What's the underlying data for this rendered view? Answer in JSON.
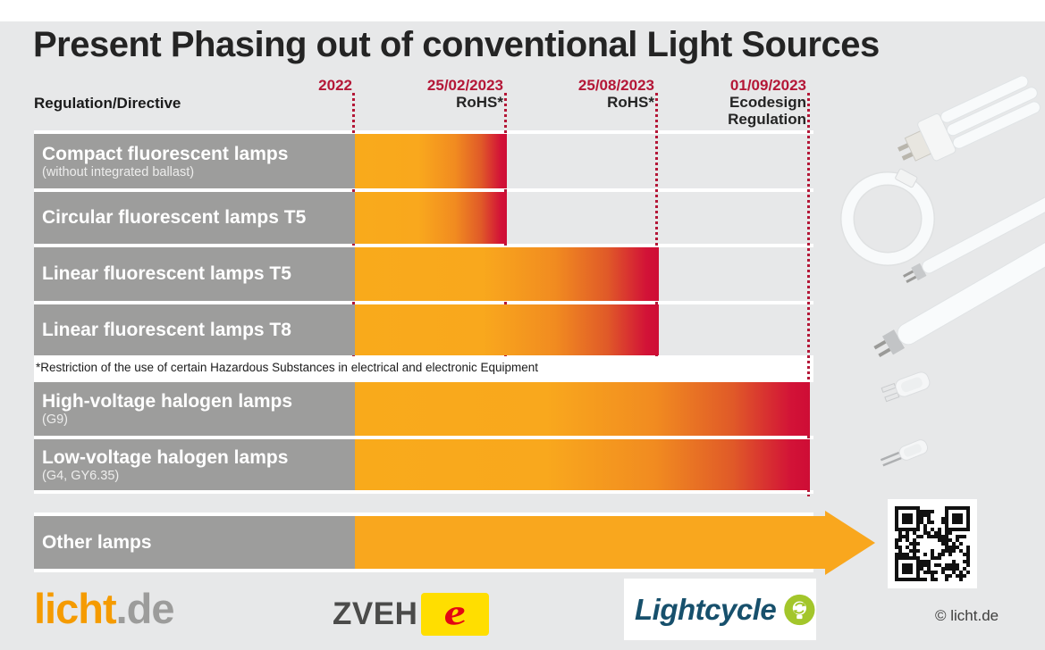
{
  "header": {
    "title": "Present Phasing out of conventional Light Sources",
    "column_label": "Regulation/Directive"
  },
  "timeline": {
    "milestones": [
      {
        "date": "2022",
        "sublines": []
      },
      {
        "date": "25/02/2023",
        "sublines": [
          "RoHS*"
        ]
      },
      {
        "date": "25/08/2023",
        "sublines": [
          "RoHS*"
        ]
      },
      {
        "date": "01/09/2023",
        "sublines": [
          "Ecodesign",
          "Regulation"
        ]
      }
    ]
  },
  "rows": [
    {
      "label": "Compact fluorescent lamps",
      "sublabel": "(without integrated ballast)",
      "phase_out": "25/02/2023"
    },
    {
      "label": "Circular fluorescent lamps T5",
      "sublabel": "",
      "phase_out": "25/02/2023"
    },
    {
      "label": "Linear fluorescent lamps T5",
      "sublabel": "",
      "phase_out": "25/08/2023"
    },
    {
      "label": "Linear fluorescent lamps T8",
      "sublabel": "",
      "phase_out": "25/08/2023"
    },
    {
      "label": "High-voltage halogen lamps",
      "sublabel": "(G9)",
      "phase_out": "01/09/2023"
    },
    {
      "label": "Low-voltage halogen lamps",
      "sublabel": "(G4, GY6.35)",
      "phase_out": "01/09/2023"
    },
    {
      "label": "Other lamps",
      "sublabel": "",
      "phase_out": "ongoing"
    }
  ],
  "footnote": "*Restriction of the use of certain Hazardous Substances in electrical and electronic Equipment",
  "footer": {
    "licht_de": {
      "prefix": "licht",
      "suffix": ".de"
    },
    "zveh_label": "ZVEH",
    "lightcycle_label": "Lightcycle",
    "copyright": "© licht.de"
  },
  "colors": {
    "background": "#E7E8E9",
    "label_gray": "#9D9D9C",
    "bar_orange": "#F9A71E",
    "bar_red": "#CE0D35",
    "milestone_red": "#B41737",
    "zveh_yellow": "#FFDE00",
    "zveh_red": "#E30613",
    "lightcycle_blue": "#17506C",
    "lightcycle_green": "#A3C62B",
    "licht_orange": "#F59B00"
  },
  "chart_data": {
    "type": "bar",
    "subtype": "horizontal-timeline",
    "title": "Present Phasing out of conventional Light Sources",
    "x_ticks": [
      "2022",
      "25/02/2023",
      "25/08/2023",
      "01/09/2023"
    ],
    "x_tick_sublabels": [
      "",
      "RoHS*",
      "RoHS*",
      "Ecodesign Regulation"
    ],
    "categories": [
      "Compact fluorescent lamps (without integrated ballast)",
      "Circular fluorescent lamps T5",
      "Linear fluorescent lamps T5",
      "Linear fluorescent lamps T8",
      "High-voltage halogen lamps (G9)",
      "Low-voltage halogen lamps (G4, GY6.35)",
      "Other lamps"
    ],
    "bars": [
      {
        "category": "Compact fluorescent lamps (without integrated ballast)",
        "start": "2022",
        "end": "25/02/2023",
        "regulation": "RoHS*"
      },
      {
        "category": "Circular fluorescent lamps T5",
        "start": "2022",
        "end": "25/02/2023",
        "regulation": "RoHS*"
      },
      {
        "category": "Linear fluorescent lamps T5",
        "start": "2022",
        "end": "25/08/2023",
        "regulation": "RoHS*"
      },
      {
        "category": "Linear fluorescent lamps T8",
        "start": "2022",
        "end": "25/08/2023",
        "regulation": "RoHS*"
      },
      {
        "category": "High-voltage halogen lamps (G9)",
        "start": "2022",
        "end": "01/09/2023",
        "regulation": "Ecodesign Regulation"
      },
      {
        "category": "Low-voltage halogen lamps (G4, GY6.35)",
        "start": "2022",
        "end": "01/09/2023",
        "regulation": "Ecodesign Regulation"
      },
      {
        "category": "Other lamps",
        "start": "2022",
        "end": "ongoing",
        "regulation": ""
      }
    ],
    "footnote": "*Restriction of the use of certain Hazardous Substances in electrical and electronic Equipment",
    "bar_gradient": [
      "#F9A81D",
      "#CE0D35"
    ],
    "legend": "none",
    "grid": "off"
  }
}
